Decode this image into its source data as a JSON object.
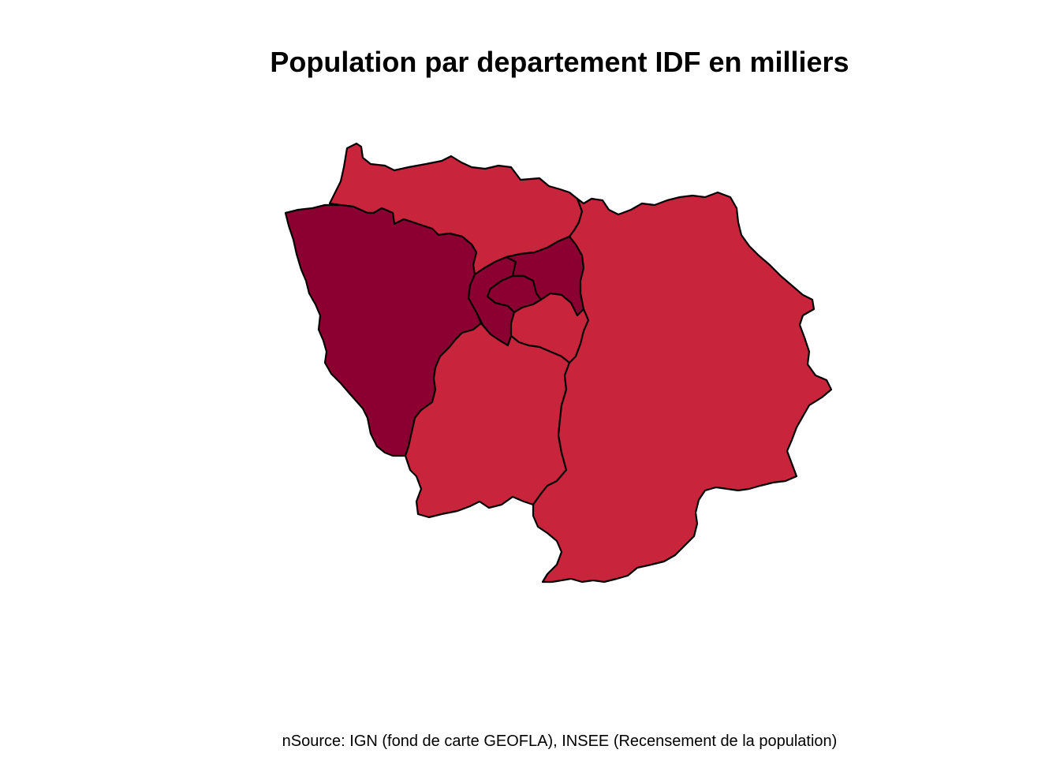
{
  "title": "Population par departement IDF en milliers",
  "source": "nSource: IGN (fond de carte GEOFLA), INSEE (Recensement de la population)",
  "colors": {
    "high": "#8b0030",
    "medium": "#c8253d",
    "border": "#000000",
    "background": "#ffffff"
  },
  "regions": [
    {
      "id": "val-d-oise",
      "class": "medium"
    },
    {
      "id": "yvelines",
      "class": "high"
    },
    {
      "id": "hauts-de-seine",
      "class": "high"
    },
    {
      "id": "seine-saint-denis",
      "class": "high"
    },
    {
      "id": "paris",
      "class": "high"
    },
    {
      "id": "val-de-marne",
      "class": "medium"
    },
    {
      "id": "essonne",
      "class": "medium"
    },
    {
      "id": "seine-et-marne",
      "class": "medium"
    }
  ]
}
